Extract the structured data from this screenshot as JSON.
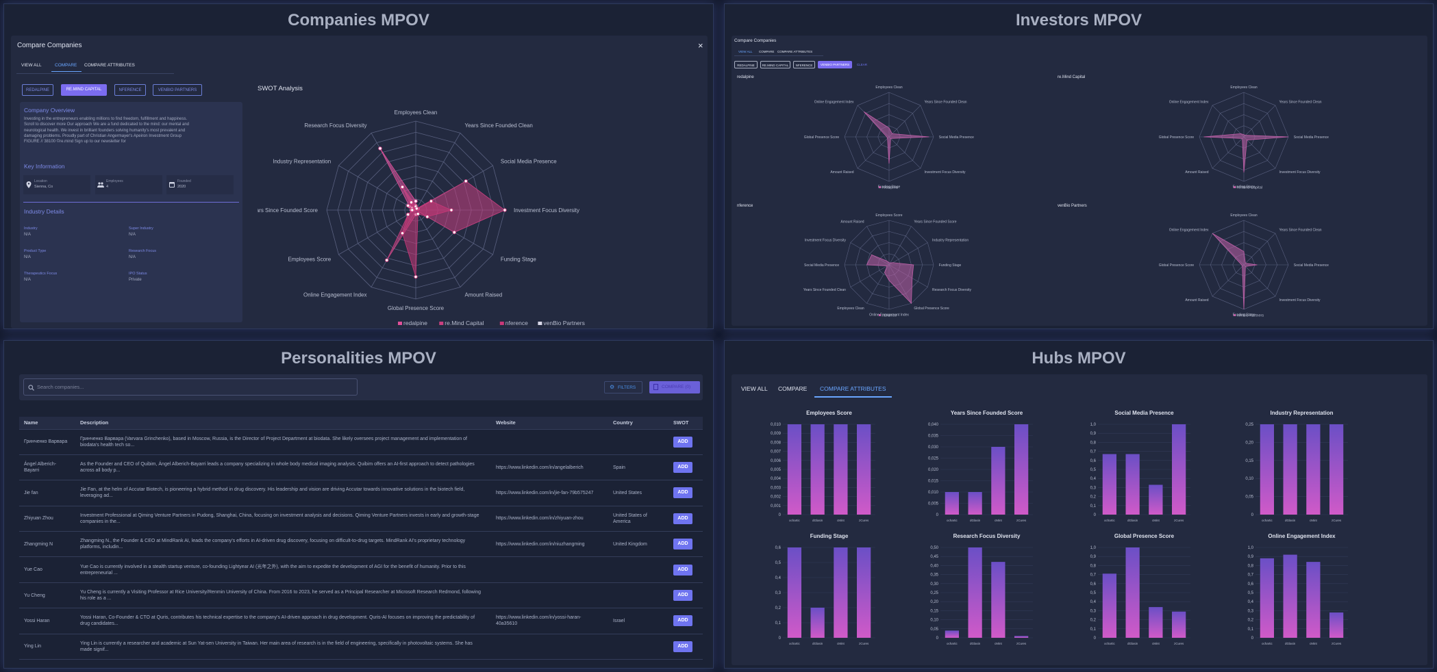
{
  "companies": {
    "title": "Companies MPOV",
    "modal_title": "Compare Companies",
    "close": "×",
    "tabs": [
      "VIEW ALL",
      "COMPARE",
      "COMPARE ATTRIBUTES"
    ],
    "company_buttons": [
      "REDALPINE",
      "RE.MIND CAPITAL",
      "NFERENCE",
      "VENBIO PARTNERS"
    ],
    "overview_title": "Company Overview",
    "overview_lines": [
      "Investing in the entrepreneurs enabling millions to find freedom, fulfillment and happiness.",
      "Scroll to discover more Our approach We are a fund dedicated to the mind: our mental and",
      "neurological health. We invest in brilliant founders solving humanity's most prevalent and",
      "damaging problems. Proudly part of Christian Angermayer's Apeiron Investment Group",
      "FIGURE // 38100 ©re.mind Sign up to our newsletter for"
    ],
    "key_info_title": "Key Information",
    "key_info": [
      {
        "label": "Location",
        "value": "Sienna, Co",
        "icon": "location-pin-icon"
      },
      {
        "label": "Employees",
        "value": "4",
        "icon": "people-icon"
      },
      {
        "label": "Founded",
        "value": "2020",
        "icon": "calendar-icon"
      }
    ],
    "industry_title": "Industry Details",
    "industry": [
      {
        "label": "Industry",
        "value": "N/A"
      },
      {
        "label": "Super Industry",
        "value": "N/A"
      },
      {
        "label": "Product Type",
        "value": "N/A"
      },
      {
        "label": "Research Focus",
        "value": "N/A"
      },
      {
        "label": "Therapeutics Focus",
        "value": "N/A"
      },
      {
        "label": "IPO Status",
        "value": "Private"
      }
    ],
    "swot_title": "SWOT Analysis",
    "radar": {
      "axes": [
        "Employees Clean",
        "Years Since Founded Clean",
        "Social Media Presence",
        "Investment Focus Diversity",
        "Funding Stage",
        "Amount Raised",
        "Global Presence Score",
        "Online Engagement Index",
        "Employees Score",
        "Years Since Founded Score",
        "Industry Representation",
        "Research Focus Diversity"
      ],
      "ticks": [
        "0",
        "25",
        "50",
        "75",
        "100"
      ],
      "series": [
        {
          "name": "redalpine",
          "color": "#e0509a",
          "values": [
            10,
            0,
            3,
            0,
            0,
            0,
            0,
            0,
            0,
            5,
            8,
            80
          ]
        },
        {
          "name": "re.Mind Capital",
          "color": "#c94080",
          "values": [
            5,
            2,
            65,
            100,
            50,
            0,
            5,
            65,
            10,
            3,
            5,
            30
          ]
        },
        {
          "name": "nference",
          "color": "#c83878",
          "values": [
            4,
            2,
            20,
            40,
            15,
            5,
            75,
            30,
            10,
            4,
            10,
            10
          ]
        },
        {
          "name": "venBio Partners",
          "color": "#d8d8e8",
          "values": [
            0,
            0,
            0,
            0,
            0,
            0,
            0,
            0,
            0,
            0,
            0,
            0
          ]
        }
      ]
    }
  },
  "investors": {
    "title": "Investors MPOV",
    "modal_title": "Compare Companies",
    "tabs": [
      "VIEW ALL",
      "COMPARE",
      "COMPARE ATTRIBUTES"
    ],
    "buttons": [
      "REDALPINE",
      "RE.MIND CAPITAL",
      "NFERENCE",
      "VENBIO PARTNERS",
      "CLEAR"
    ],
    "charts": [
      {
        "name": "redalpine",
        "legend": "redalpine",
        "axes": [
          "Employees Clean",
          "Years Since Founded Clean",
          "Social Media Presence",
          "Investment Focus Diversity",
          "Funding Stage",
          "Amount Raised",
          "Global Presence Score",
          "Online Engagement Index"
        ],
        "values": [
          20,
          10,
          90,
          5,
          60,
          5,
          5,
          80
        ]
      },
      {
        "name": "re.Mind Capital",
        "legend": "re.Mind Capital",
        "axes": [
          "Employees Clean",
          "Years Since Founded Clean",
          "Social Media Presence",
          "Investment Focus Diversity",
          "Funding Stage",
          "Amount Raised",
          "Global Presence Score",
          "Online Engagement Index"
        ],
        "values": [
          5,
          5,
          100,
          10,
          80,
          5,
          90,
          10
        ]
      },
      {
        "name": "nference",
        "legend": "nference",
        "axes": [
          "Employees Score",
          "Years Since Founded Score",
          "Industry Representation",
          "Funding Stage",
          "Research Focus Diversity",
          "Global Presence Score",
          "Online Engagement Index",
          "Employees Clean",
          "Years Since Founded Clean",
          "Social Media Presence",
          "Investment Focus Diversity",
          "Amount Raised"
        ],
        "values": [
          5,
          5,
          10,
          55,
          60,
          100,
          35,
          20,
          5,
          50,
          45,
          10
        ]
      },
      {
        "name": "venBio Partners",
        "legend": "venBio Partners",
        "axes": [
          "Employees Clean",
          "Years Since Founded Clean",
          "Social Media Presence",
          "Investment Focus Diversity",
          "Funding Stage",
          "Amount Raised",
          "Global Presence Score",
          "Online Engagement Index"
        ],
        "values": [
          30,
          5,
          30,
          5,
          100,
          5,
          5,
          100
        ]
      }
    ]
  },
  "personalities": {
    "title": "Personalities MPOV",
    "search_placeholder": "Search companies...",
    "filters": "FILTERS",
    "compare": "COMPARE (0)",
    "columns": [
      "Name",
      "Description",
      "Website",
      "Country",
      "SWOT"
    ],
    "add_label": "ADD",
    "rows": [
      {
        "name": "Гринченко Варвара",
        "desc1": "Гринченко Варвара (Varvara Grinchenko), based in Moscow, Russia, is the Director of Project Department at biodata. She likely oversees project management and implementation of",
        "desc2": "biodata's health tech so...",
        "website": "",
        "country": ""
      },
      {
        "name": "Ángel Alberich-",
        "name2": "Bayarri",
        "desc1": "As the Founder and CEO of Quibim, Ángel Alberich-Bayarri leads a company specializing in whole body medical imaging analysis. Quibim offers an AI-first approach to detect pathologies",
        "desc2": "across all body p...",
        "website": "https://www.linkedin.com/in/angelalberich",
        "country": "Spain"
      },
      {
        "name": "Jie fan",
        "desc1": "Jie Fan, at the helm of Accutar Biotech, is pioneering a hybrid method in drug discovery. His leadership and vision are driving Accutar towards innovative solutions in the biotech field,",
        "desc2": "leveraging ad...",
        "website": "https://www.linkedin.com/in/jie-fan-79b575247",
        "country": "United States"
      },
      {
        "name": "Zhiyuan Zhou",
        "desc1": "Investment Professional at Qiming Venture Partners in Pudong, Shanghai, China, focusing on investment analysis and decisions. Qiming Venture Partners invests in early and growth-stage",
        "desc2": "companies in the...",
        "website": "https://www.linkedin.com/in/zhiyuan-zhou",
        "country": "United States of",
        "country2": "America"
      },
      {
        "name": "Zhangming N",
        "desc1": "Zhangming N., the Founder & CEO at MindRank AI, leads the company's efforts in AI-driven drug discovery, focusing on difficult-to-drug targets. MindRank AI's proprietary technology",
        "desc2": "platforms, includin...",
        "website": "https://www.linkedin.com/in/niuzhangming",
        "country": "United Kingdom"
      },
      {
        "name": "Yue Cao",
        "desc1": "Yue Cao is currently involved in a stealth startup venture, co-founding Lightyear AI (光年之外), with the aim to expedite the development of AGI for the benefit of humanity. Prior to this",
        "desc2": "entrepreneurial ...",
        "website": "",
        "country": ""
      },
      {
        "name": "Yu Cheng",
        "desc1": "Yu Cheng is currently a Visiting Professor at Rice University/Renmin University of China. From 2016 to 2023, he served as a Principal Researcher at Microsoft Research Redmond, following",
        "desc2": "his role as a ...",
        "website": "",
        "country": ""
      },
      {
        "name": "Yossi Haran",
        "desc1": "Yossi Haran, Co-Founder & CTO at Quris, contributes his technical expertise to the company's AI-driven approach in drug development. Quris-AI focuses on improving the predictability of",
        "desc2": "drug candidates...",
        "website": "https://www.linkedin.com/in/yossi-haran-",
        "website2": "40a35610",
        "country": "Israel"
      },
      {
        "name": "Ying Lin",
        "desc1": "Ying Lin is currently a researcher and academic at Sun Yat-sen University in Taiwan. Her main area of research is in the field of engineering, specifically in photovoltaic systems. She has",
        "desc2": "made signif...",
        "website": "",
        "country": ""
      }
    ]
  },
  "hubs": {
    "title": "Hubs MPOV",
    "tabs": [
      "VIEW ALL",
      "COMPARE",
      "COMPARE ATTRIBUTES"
    ],
    "categories": [
      "ochartic",
      "dGlasin",
      "cMint",
      "zCures"
    ]
  },
  "chart_data": [
    {
      "type": "bar",
      "title": "Employees Score",
      "categories": [
        "ochartic",
        "dGlasin",
        "cMint",
        "zCures"
      ],
      "values": [
        0.01,
        0.01,
        0.01,
        0.01
      ],
      "ylim": [
        0,
        0.01
      ],
      "ticks": [
        "0",
        "0,001",
        "0,002",
        "0,003",
        "0,004",
        "0,005",
        "0,006",
        "0,007",
        "0,008",
        "0,009",
        "0,010"
      ]
    },
    {
      "type": "bar",
      "title": "Years Since Founded Score",
      "categories": [
        "ochartic",
        "dGlasin",
        "cMint",
        "zCures"
      ],
      "values": [
        0.01,
        0.01,
        0.03,
        0.04
      ],
      "ylim": [
        0,
        0.04
      ],
      "ticks": [
        "0",
        "0,005",
        "0,010",
        "0,015",
        "0,020",
        "0,025",
        "0,030",
        "0,035",
        "0,040"
      ]
    },
    {
      "type": "bar",
      "title": "Social Media Presence",
      "categories": [
        "ochartic",
        "dGlasin",
        "cMint",
        "zCures"
      ],
      "values": [
        0.67,
        0.67,
        0.33,
        1.0
      ],
      "ylim": [
        0,
        1.0
      ],
      "ticks": [
        "0",
        "0,1",
        "0,2",
        "0,3",
        "0,4",
        "0,5",
        "0,6",
        "0,7",
        "0,8",
        "0,9",
        "1,0"
      ]
    },
    {
      "type": "bar",
      "title": "Industry Representation",
      "categories": [
        "ochartic",
        "dGlasin",
        "cMint",
        "zCures"
      ],
      "values": [
        0.25,
        0.25,
        0.25,
        0.25
      ],
      "ylim": [
        0,
        0.25
      ],
      "ticks": [
        "0",
        "0,05",
        "0,10",
        "0,15",
        "0,20",
        "0,25"
      ]
    },
    {
      "type": "bar",
      "title": "Funding Stage",
      "categories": [
        "ochartic",
        "dGlasin",
        "cMint",
        "zCures"
      ],
      "values": [
        0.6,
        0.2,
        0.6,
        0.6
      ],
      "ylim": [
        0,
        0.6
      ],
      "ticks": [
        "0",
        "0,1",
        "0,2",
        "0,3",
        "0,4",
        "0,5",
        "0,6"
      ]
    },
    {
      "type": "bar",
      "title": "Research Focus Diversity",
      "categories": [
        "ochartic",
        "dGlasin",
        "cMint",
        "zCures"
      ],
      "values": [
        0.04,
        0.5,
        0.42,
        0.01
      ],
      "ylim": [
        0,
        0.5
      ],
      "ticks": [
        "0",
        "0,05",
        "0,10",
        "0,15",
        "0,20",
        "0,25",
        "0,30",
        "0,35",
        "0,40",
        "0,45",
        "0,50"
      ]
    },
    {
      "type": "bar",
      "title": "Global Presence Score",
      "categories": [
        "ochartic",
        "dGlasin",
        "cMint",
        "zCures"
      ],
      "values": [
        0.71,
        1.0,
        0.34,
        0.29
      ],
      "ylim": [
        0,
        1.0
      ],
      "ticks": [
        "0",
        "0,1",
        "0,2",
        "0,3",
        "0,4",
        "0,5",
        "0,6",
        "0,7",
        "0,8",
        "0,9",
        "1,0"
      ]
    },
    {
      "type": "bar",
      "title": "Online Engagement Index",
      "categories": [
        "ochartic",
        "dGlasin",
        "cMint",
        "zCures"
      ],
      "values": [
        0.88,
        0.92,
        0.84,
        0.28
      ],
      "ylim": [
        0,
        1.0
      ],
      "ticks": [
        "0",
        "0,1",
        "0,2",
        "0,3",
        "0,4",
        "0,5",
        "0,6",
        "0,7",
        "0,8",
        "0,9",
        "1,0"
      ]
    }
  ]
}
